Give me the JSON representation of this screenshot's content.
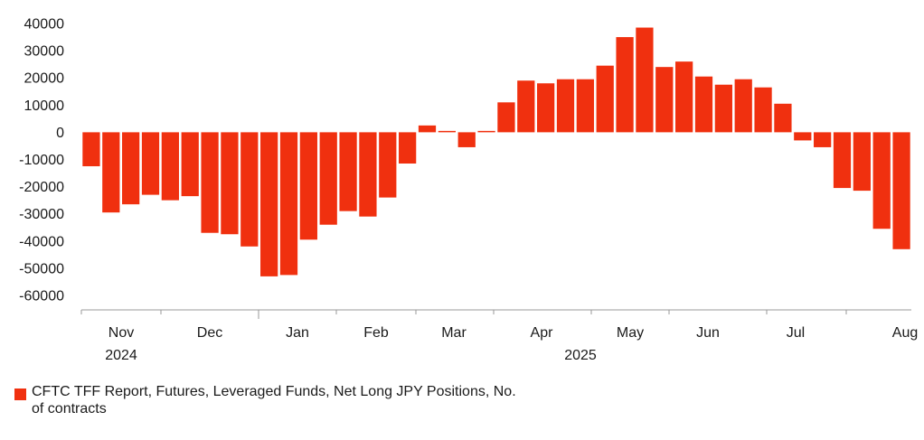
{
  "chart_data": {
    "type": "bar",
    "bar_color": "#f0300f",
    "ylim": [
      -65000,
      42000
    ],
    "y_ticks": [
      40000,
      30000,
      20000,
      10000,
      0,
      -10000,
      -20000,
      -30000,
      -40000,
      -50000,
      -60000
    ],
    "month_labels": [
      "Nov",
      "Dec",
      "Jan",
      "Feb",
      "Mar",
      "Apr",
      "May",
      "Jun",
      "Jul",
      "Aug"
    ],
    "year_labels": [
      "2024",
      "2025"
    ],
    "series": [
      {
        "name": "CFTC TFF Report, Futures, Leveraged Funds, Net Long JPY Positions, No. of contracts",
        "values": [
          -12500,
          -29500,
          -26500,
          -23000,
          -25000,
          -23500,
          -37000,
          -37500,
          -42000,
          -53000,
          -52500,
          -39500,
          -34000,
          -29000,
          -31000,
          -24000,
          -11500,
          2500,
          500,
          -5500,
          500,
          11000,
          19000,
          18000,
          19500,
          19500,
          24500,
          35000,
          38500,
          24000,
          26000,
          20500,
          17500,
          19500,
          16500,
          10500,
          -3000,
          -5500,
          -20500,
          -21500,
          -35500,
          -43000
        ]
      }
    ]
  },
  "legend": {
    "label": "CFTC TFF Report, Futures, Leveraged Funds, Net Long JPY Positions, No. of contracts"
  }
}
